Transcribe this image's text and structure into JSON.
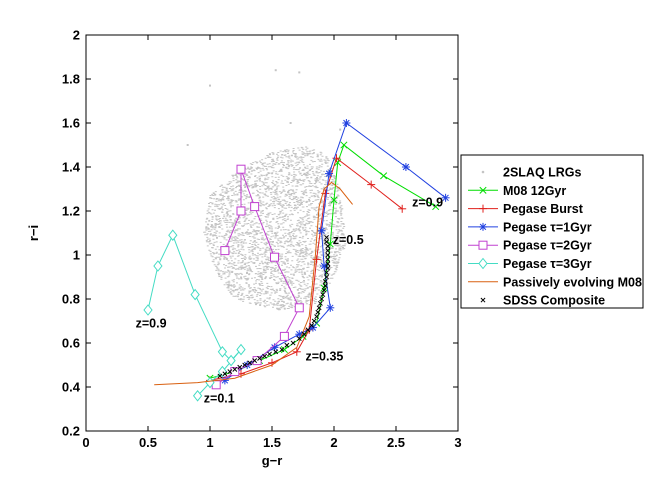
{
  "chart_data": {
    "type": "scatter",
    "xlabel": "g−r",
    "ylabel": "r−i",
    "xlim": [
      0,
      3
    ],
    "ylim": [
      0.2,
      2
    ],
    "xticks": [
      "0",
      "0.5",
      "1",
      "1.5",
      "2",
      "2.5",
      "3"
    ],
    "yticks": [
      "0.2",
      "0.4",
      "0.6",
      "0.8",
      "1",
      "1.2",
      "1.4",
      "1.6",
      "1.8",
      "2"
    ],
    "grid": false,
    "legend_position": "right, outside plot",
    "annotations": [
      {
        "text": "z=0.9",
        "x": 0.4,
        "y": 0.67
      },
      {
        "text": "z=0.1",
        "x": 0.95,
        "y": 0.33
      },
      {
        "text": "z=0.35",
        "x": 1.77,
        "y": 0.52
      },
      {
        "text": "z=0.5",
        "x": 1.99,
        "y": 1.05
      },
      {
        "text": "z=0.9",
        "x": 2.63,
        "y": 1.22
      }
    ],
    "series": [
      {
        "name": "2SLAQ LRGs",
        "marker": "dot",
        "color": "#c4c4c4",
        "cloud": {
          "polygon": [
            [
              1.2,
              0.8
            ],
            [
              1.55,
              0.75
            ],
            [
              1.85,
              0.78
            ],
            [
              2.0,
              0.9
            ],
            [
              2.1,
              1.05
            ],
            [
              2.05,
              1.3
            ],
            [
              1.95,
              1.45
            ],
            [
              1.8,
              1.5
            ],
            [
              1.5,
              1.47
            ],
            [
              1.2,
              1.38
            ],
            [
              1.0,
              1.27
            ],
            [
              0.95,
              1.1
            ],
            [
              1.05,
              0.92
            ]
          ],
          "count": 3000
        },
        "outliers": [
          [
            1.0,
            1.77
          ],
          [
            1.53,
            1.84
          ],
          [
            1.72,
            1.83
          ],
          [
            2.05,
            1.57
          ],
          [
            1.65,
            1.6
          ],
          [
            0.82,
            1.5
          ]
        ]
      },
      {
        "name": "M08 12Gyr",
        "marker": "x",
        "color": "#00dd00",
        "x": [
          1.0,
          1.2,
          1.4,
          1.6,
          1.75,
          1.86,
          1.92,
          1.97,
          2.0,
          2.03,
          2.08,
          2.4,
          2.82
        ],
        "y": [
          0.44,
          0.47,
          0.52,
          0.57,
          0.63,
          0.69,
          0.85,
          1.05,
          1.25,
          1.42,
          1.5,
          1.36,
          1.22
        ]
      },
      {
        "name": "Pegase Burst",
        "marker": "plus",
        "color": "#e0201c",
        "x": [
          1.0,
          1.25,
          1.5,
          1.7,
          1.8,
          1.86,
          1.93,
          2.02,
          2.3,
          2.55
        ],
        "y": [
          0.43,
          0.46,
          0.51,
          0.56,
          0.66,
          0.98,
          1.28,
          1.44,
          1.32,
          1.21
        ]
      },
      {
        "name": "Pegase τ=1Gyr",
        "marker": "asterisk",
        "color": "#2040e0",
        "x": [
          1.12,
          1.3,
          1.52,
          1.72,
          1.83,
          1.97,
          1.92,
          1.9,
          1.96,
          2.1,
          2.58,
          2.9
        ],
        "y": [
          0.43,
          0.5,
          0.58,
          0.64,
          0.67,
          0.76,
          0.95,
          1.11,
          1.37,
          1.6,
          1.4,
          1.26
        ]
      },
      {
        "name": "Pegase τ=2Gyr",
        "marker": "square",
        "color": "#c040d0",
        "x": [
          1.05,
          1.2,
          1.38,
          1.6,
          1.72,
          1.52,
          1.36,
          1.25,
          1.25,
          1.12
        ],
        "y": [
          0.41,
          0.47,
          0.52,
          0.63,
          0.76,
          0.99,
          1.22,
          1.39,
          1.2,
          1.02
        ]
      },
      {
        "name": "Pegase τ=3Gyr",
        "marker": "diamond",
        "color": "#44dcc4",
        "x": [
          0.9,
          1.0,
          1.1,
          1.25,
          1.17,
          1.1,
          0.88,
          0.7,
          0.58,
          0.5
        ],
        "y": [
          0.36,
          0.42,
          0.47,
          0.57,
          0.52,
          0.56,
          0.82,
          1.09,
          0.95,
          0.75
        ]
      },
      {
        "name": "Passively evolving M08",
        "marker": "none",
        "color": "#d96010",
        "x": [
          0.55,
          0.9,
          1.2,
          1.5,
          1.7,
          1.8,
          1.85,
          1.88,
          1.92,
          1.98,
          2.05,
          2.15
        ],
        "y": [
          0.41,
          0.42,
          0.44,
          0.5,
          0.58,
          0.72,
          1.0,
          1.22,
          1.3,
          1.33,
          1.3,
          1.23
        ]
      },
      {
        "name": "SDSS Composite",
        "marker": "x",
        "color": "#000000",
        "x": [
          1.08,
          1.12,
          1.16,
          1.2,
          1.24,
          1.28,
          1.32,
          1.36,
          1.4,
          1.44,
          1.48,
          1.53,
          1.58,
          1.62,
          1.67,
          1.72,
          1.76,
          1.79,
          1.82,
          1.84,
          1.86,
          1.87,
          1.88,
          1.89,
          1.9,
          1.91,
          1.92,
          1.93,
          1.93,
          1.94,
          1.94,
          1.95,
          1.95,
          1.95,
          1.95,
          1.95,
          1.95,
          1.94,
          1.94
        ],
        "y": [
          0.45,
          0.46,
          0.47,
          0.48,
          0.49,
          0.5,
          0.51,
          0.52,
          0.53,
          0.54,
          0.55,
          0.56,
          0.57,
          0.59,
          0.6,
          0.62,
          0.64,
          0.66,
          0.68,
          0.7,
          0.72,
          0.74,
          0.76,
          0.78,
          0.8,
          0.82,
          0.84,
          0.86,
          0.88,
          0.9,
          0.92,
          0.94,
          0.96,
          0.98,
          1.0,
          1.02,
          1.04,
          1.06,
          1.08
        ]
      }
    ]
  }
}
